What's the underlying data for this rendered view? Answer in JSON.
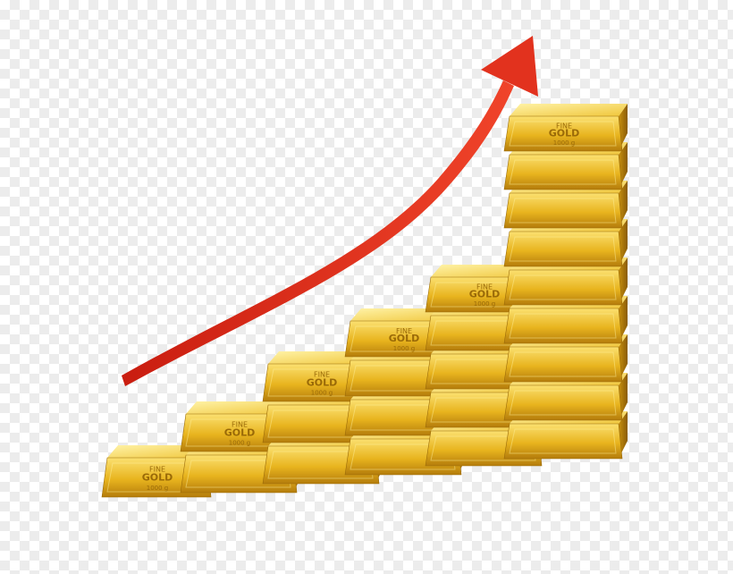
{
  "scene": {
    "subject": "gold-bars-growth",
    "background": "transparency-checkerboard",
    "colors": {
      "gold_light": "#fde97a",
      "gold_mid": "#e8b41e",
      "gold_dark": "#a8730a",
      "arrow": "#e2321e",
      "checker": "#ececec"
    },
    "stack_heights": [
      1,
      2,
      3,
      4,
      5,
      9
    ],
    "bar_stamps": {
      "line1": "FINE",
      "line2": "GOLD",
      "line3": "999.9",
      "line4": "1000 g"
    }
  }
}
